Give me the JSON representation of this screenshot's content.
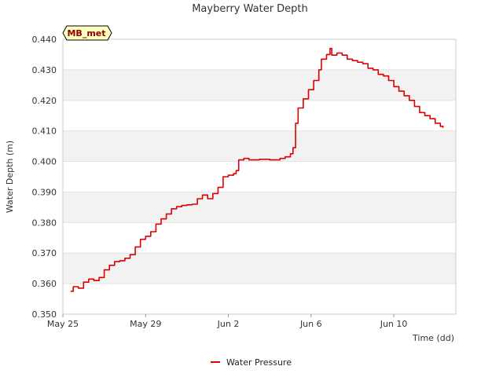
{
  "chart_data": {
    "type": "line",
    "title": "Mayberry Water Depth",
    "xlabel": "Time (dd)",
    "ylabel": "Water Depth (m)",
    "ylim": [
      0.35,
      0.44
    ],
    "yticks": [
      "0.350",
      "0.360",
      "0.370",
      "0.380",
      "0.390",
      "0.400",
      "0.410",
      "0.420",
      "0.430",
      "0.440"
    ],
    "xlim": [
      "2017-05-25",
      "2017-06-13"
    ],
    "xticks": [
      {
        "date": "2017-05-25",
        "label": "May 25"
      },
      {
        "date": "2017-05-29",
        "label": "May 29"
      },
      {
        "date": "2017-06-02",
        "label": "Jun 2"
      },
      {
        "date": "2017-06-06",
        "label": "Jun 6"
      },
      {
        "date": "2017-06-10",
        "label": "Jun 10"
      }
    ],
    "grid": "horizontal bands",
    "legend_position": "bottom-center",
    "badge": "MB_met",
    "colors": {
      "series": "#dd0000",
      "band": "#f2f2f2",
      "badge_bg": "#ffffc0"
    },
    "series": [
      {
        "name": "Water Pressure",
        "points": [
          [
            "2017-05-25 09:00",
            0.3575
          ],
          [
            "2017-05-25 12:00",
            0.359
          ],
          [
            "2017-05-25 18:00",
            0.3585
          ],
          [
            "2017-05-26 00:00",
            0.3605
          ],
          [
            "2017-05-26 06:00",
            0.3615
          ],
          [
            "2017-05-26 12:00",
            0.361
          ],
          [
            "2017-05-26 18:00",
            0.362
          ],
          [
            "2017-05-27 00:00",
            0.3645
          ],
          [
            "2017-05-27 06:00",
            0.366
          ],
          [
            "2017-05-27 12:00",
            0.3672
          ],
          [
            "2017-05-27 18:00",
            0.3675
          ],
          [
            "2017-05-28 00:00",
            0.3683
          ],
          [
            "2017-05-28 06:00",
            0.3695
          ],
          [
            "2017-05-28 12:00",
            0.372
          ],
          [
            "2017-05-28 18:00",
            0.3745
          ],
          [
            "2017-05-29 00:00",
            0.3755
          ],
          [
            "2017-05-29 06:00",
            0.377
          ],
          [
            "2017-05-29 12:00",
            0.3795
          ],
          [
            "2017-05-29 18:00",
            0.3812
          ],
          [
            "2017-05-30 00:00",
            0.3828
          ],
          [
            "2017-05-30 06:00",
            0.3845
          ],
          [
            "2017-05-30 12:00",
            0.3852
          ],
          [
            "2017-05-30 18:00",
            0.3856
          ],
          [
            "2017-05-31 00:00",
            0.3858
          ],
          [
            "2017-05-31 06:00",
            0.386
          ],
          [
            "2017-05-31 12:00",
            0.3878
          ],
          [
            "2017-05-31 18:00",
            0.389
          ],
          [
            "2017-06-01 00:00",
            0.3878
          ],
          [
            "2017-06-01 06:00",
            0.3895
          ],
          [
            "2017-06-01 12:00",
            0.3915
          ],
          [
            "2017-06-01 18:00",
            0.395
          ],
          [
            "2017-06-02 00:00",
            0.3955
          ],
          [
            "2017-06-02 06:00",
            0.396
          ],
          [
            "2017-06-02 09:00",
            0.397
          ],
          [
            "2017-06-02 12:00",
            0.4005
          ],
          [
            "2017-06-02 18:00",
            0.401
          ],
          [
            "2017-06-03 00:00",
            0.4005
          ],
          [
            "2017-06-03 12:00",
            0.4007
          ],
          [
            "2017-06-04 00:00",
            0.4005
          ],
          [
            "2017-06-04 12:00",
            0.401
          ],
          [
            "2017-06-04 18:00",
            0.4015
          ],
          [
            "2017-06-05 00:00",
            0.4025
          ],
          [
            "2017-06-05 03:00",
            0.4045
          ],
          [
            "2017-06-05 06:00",
            0.4125
          ],
          [
            "2017-06-05 09:00",
            0.4175
          ],
          [
            "2017-06-05 15:00",
            0.4205
          ],
          [
            "2017-06-05 21:00",
            0.4235
          ],
          [
            "2017-06-06 03:00",
            0.4265
          ],
          [
            "2017-06-06 09:00",
            0.43
          ],
          [
            "2017-06-06 12:00",
            0.4335
          ],
          [
            "2017-06-06 18:00",
            0.435
          ],
          [
            "2017-06-06 22:00",
            0.437
          ],
          [
            "2017-06-07 00:00",
            0.4348
          ],
          [
            "2017-06-07 06:00",
            0.4355
          ],
          [
            "2017-06-07 12:00",
            0.4348
          ],
          [
            "2017-06-07 18:00",
            0.4335
          ],
          [
            "2017-06-08 00:00",
            0.433
          ],
          [
            "2017-06-08 06:00",
            0.4325
          ],
          [
            "2017-06-08 12:00",
            0.432
          ],
          [
            "2017-06-08 18:00",
            0.4305
          ],
          [
            "2017-06-09 00:00",
            0.43
          ],
          [
            "2017-06-09 06:00",
            0.4285
          ],
          [
            "2017-06-09 12:00",
            0.428
          ],
          [
            "2017-06-09 18:00",
            0.4265
          ],
          [
            "2017-06-10 00:00",
            0.4245
          ],
          [
            "2017-06-10 06:00",
            0.423
          ],
          [
            "2017-06-10 12:00",
            0.4215
          ],
          [
            "2017-06-10 18:00",
            0.42
          ],
          [
            "2017-06-11 00:00",
            0.418
          ],
          [
            "2017-06-11 06:00",
            0.416
          ],
          [
            "2017-06-11 12:00",
            0.415
          ],
          [
            "2017-06-11 18:00",
            0.414
          ],
          [
            "2017-06-12 00:00",
            0.4125
          ],
          [
            "2017-06-12 06:00",
            0.4115
          ],
          [
            "2017-06-12 09:00",
            0.411
          ]
        ]
      }
    ]
  }
}
